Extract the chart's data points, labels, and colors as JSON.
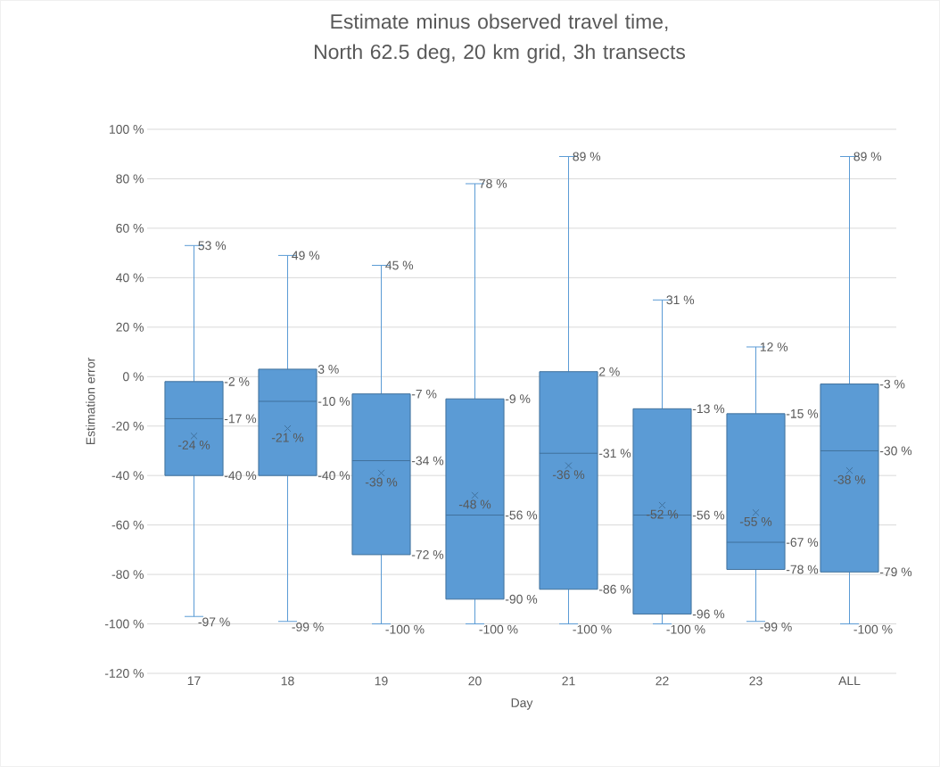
{
  "chart_data": {
    "type": "box",
    "title": "Estimate minus observed travel time, North 62.5 deg, 20 km grid, 3h transects",
    "xlabel": "Day",
    "ylabel": "Estimation error",
    "categories": [
      "17",
      "18",
      "19",
      "20",
      "21",
      "22",
      "23",
      "ALL"
    ],
    "color": "#5b9bd5",
    "boxes": [
      {
        "low": -97,
        "q1": -40,
        "median": -17,
        "q3": -2,
        "high": 53,
        "mean": -24
      },
      {
        "low": -99,
        "q1": -40,
        "median": -10,
        "q3": 3,
        "high": 49,
        "mean": -21
      },
      {
        "low": -100,
        "q1": -72,
        "median": -34,
        "q3": -7,
        "high": 45,
        "mean": -39
      },
      {
        "low": -100,
        "q1": -90,
        "median": -56,
        "q3": -9,
        "high": 78,
        "mean": -48
      },
      {
        "low": -100,
        "q1": -86,
        "median": -31,
        "q3": 2,
        "high": 89,
        "mean": -36
      },
      {
        "low": -100,
        "q1": -96,
        "median": -56,
        "q3": -13,
        "high": 31,
        "mean": -52
      },
      {
        "low": -99,
        "q1": -78,
        "median": -67,
        "q3": -15,
        "high": 12,
        "mean": -55
      },
      {
        "low": -100,
        "q1": -79,
        "median": -30,
        "q3": -3,
        "high": 89,
        "mean": -38
      }
    ],
    "value_labels": [
      {
        "low": "-97 %",
        "q1": "-40 %",
        "median": "-17 %",
        "q3": "-2 %",
        "high": "53 %",
        "mean": "-24 %"
      },
      {
        "low": "-99 %",
        "q1": "-40 %",
        "median": "-10 %",
        "q3": "3 %",
        "high": "49 %",
        "mean": "-21 %"
      },
      {
        "low": "-100 %",
        "q1": "-72 %",
        "median": "-34 %",
        "q3": "-7 %",
        "high": "45 %",
        "mean": "-39 %"
      },
      {
        "low": "-100 %",
        "q1": "-90 %",
        "median": "-56 %",
        "q3": "-9 %",
        "high": "78 %",
        "mean": "-48 %"
      },
      {
        "low": "-100 %",
        "q1": "-86 %",
        "median": "-31 %",
        "q3": "2 %",
        "high": "89 %",
        "mean": "-36 %"
      },
      {
        "low": "-100 %",
        "q1": "-96 %",
        "median": "-56 %",
        "q3": "-13 %",
        "high": "31 %",
        "mean": "-52 %"
      },
      {
        "low": "-99 %",
        "q1": "-78 %",
        "median": "-67 %",
        "q3": "-15 %",
        "high": "12 %",
        "mean": "-55 %"
      },
      {
        "low": "-100 %",
        "q1": "-79 %",
        "median": "-30 %",
        "q3": "-3 %",
        "high": "89 %",
        "mean": "-38 %"
      }
    ],
    "ylim": [
      -120,
      100
    ],
    "yticks": [
      {
        "value": -120,
        "label": "-120 %"
      },
      {
        "value": -100,
        "label": "-100 %"
      },
      {
        "value": -80,
        "label": "-80 %"
      },
      {
        "value": -60,
        "label": "-60 %"
      },
      {
        "value": -40,
        "label": "-40 %"
      },
      {
        "value": -20,
        "label": "-20 %"
      },
      {
        "value": 0,
        "label": "0 %"
      },
      {
        "value": 20,
        "label": "20 %"
      },
      {
        "value": 40,
        "label": "40 %"
      },
      {
        "value": 60,
        "label": "60 %"
      },
      {
        "value": 80,
        "label": "80 %"
      },
      {
        "value": 100,
        "label": "100 %"
      }
    ],
    "grid": "y",
    "marker": "cross"
  }
}
